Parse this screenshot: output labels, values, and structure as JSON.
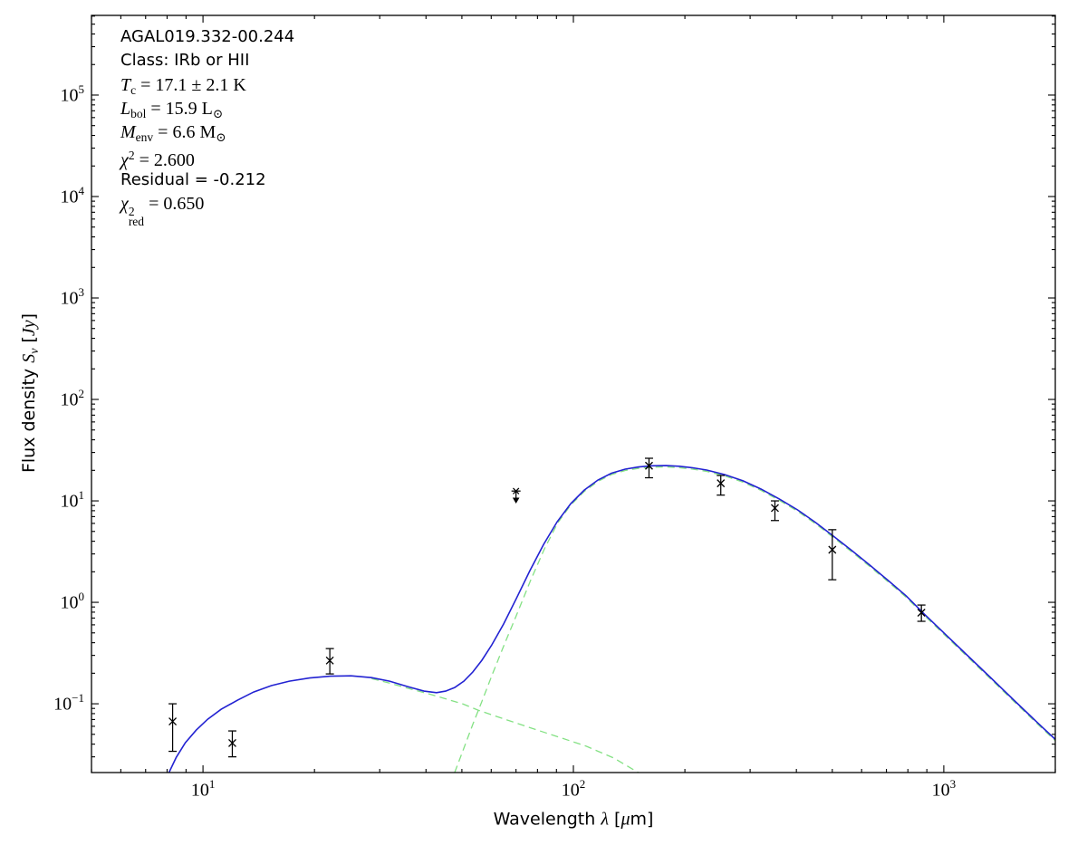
{
  "figure": {
    "background": "#ffffff",
    "annotation": {
      "lines": [
        {
          "name": "source-name",
          "parts": [
            {
              "t": "AGAL019.332-00.244",
              "f": "sans"
            }
          ]
        },
        {
          "name": "class",
          "parts": [
            {
              "t": "Class: IRb or HII",
              "f": "sans"
            }
          ]
        },
        {
          "name": "temperature",
          "parts": [
            {
              "t": "T",
              "f": "i"
            },
            {
              "t": "c",
              "f": "sub"
            },
            {
              "t": " = 17.1 ± 2.1 K",
              "f": "r"
            }
          ]
        },
        {
          "name": "luminosity",
          "parts": [
            {
              "t": "L",
              "f": "i"
            },
            {
              "t": "bol",
              "f": "sub"
            },
            {
              "t": " = 15.9 L",
              "f": "r"
            },
            {
              "t": "⊙",
              "f": "sub"
            }
          ]
        },
        {
          "name": "envelope-mass",
          "parts": [
            {
              "t": "M",
              "f": "i"
            },
            {
              "t": "env",
              "f": "sub"
            },
            {
              "t": " = 6.6 M",
              "f": "r"
            },
            {
              "t": "⊙",
              "f": "sub"
            }
          ]
        },
        {
          "name": "chi-squared",
          "parts": [
            {
              "t": "χ",
              "f": "i"
            },
            {
              "t": "2",
              "f": "sup"
            },
            {
              "t": " = 2.600",
              "f": "r"
            }
          ]
        },
        {
          "name": "residual",
          "parts": [
            {
              "t": "Residual = -0.212",
              "f": "sans"
            }
          ]
        },
        {
          "name": "chi-squared-red",
          "parts": [
            {
              "t": "χ",
              "f": "i"
            },
            {
              "t": "2|red",
              "f": "stack"
            },
            {
              "t": " = 0.650",
              "f": "r"
            }
          ]
        }
      ]
    },
    "chart_data": {
      "type": "line",
      "title": "",
      "xlabel_parts": [
        {
          "t": "Wavelength ",
          "f": "sans"
        },
        {
          "t": "λ",
          "f": "mvar"
        },
        {
          "t": " [",
          "f": "sans"
        },
        {
          "t": "μ",
          "f": "mvar"
        },
        {
          "t": "m]",
          "f": "sans"
        }
      ],
      "ylabel_parts": [
        {
          "t": "Flux density ",
          "f": "sans"
        },
        {
          "t": "S",
          "f": "mvar"
        },
        {
          "t": "ν",
          "f": "msub"
        },
        {
          "t": " [",
          "f": "sans"
        },
        {
          "t": "Jy",
          "f": "mvar"
        },
        {
          "t": "]",
          "f": "sans"
        }
      ],
      "x_scale": "log",
      "y_scale": "log",
      "xlim": [
        5,
        2000
      ],
      "ylim": [
        0.021,
        610000
      ],
      "grid": false,
      "legend": "none",
      "tick_base": "10",
      "x_tick_exponents": [
        1,
        2,
        3
      ],
      "y_tick_exponents": [
        5,
        4,
        3,
        2,
        1,
        0,
        -1
      ],
      "colors": {
        "model_total": "#2222d2",
        "components": "#84e184",
        "data": "#000000"
      },
      "points": [
        {
          "wavelength_um": 8.28,
          "flux_jy": 0.067,
          "err_lo_jy": 0.034,
          "err_hi_jy": 0.1,
          "upper_limit": false
        },
        {
          "wavelength_um": 12,
          "flux_jy": 0.041,
          "err_lo_jy": 0.03,
          "err_hi_jy": 0.054,
          "upper_limit": false
        },
        {
          "wavelength_um": 22,
          "flux_jy": 0.267,
          "err_lo_jy": 0.197,
          "err_hi_jy": 0.35,
          "upper_limit": false
        },
        {
          "wavelength_um": 70,
          "flux_jy": 12.5,
          "upper_limit": true,
          "arrow_to_jy": 9.4
        },
        {
          "wavelength_um": 160,
          "flux_jy": 22.2,
          "err_lo_jy": 16.9,
          "err_hi_jy": 26.3,
          "upper_limit": false
        },
        {
          "wavelength_um": 250,
          "flux_jy": 14.9,
          "err_lo_jy": 11.4,
          "err_hi_jy": 17.8,
          "upper_limit": false
        },
        {
          "wavelength_um": 350,
          "flux_jy": 8.5,
          "err_lo_jy": 6.4,
          "err_hi_jy": 10.0,
          "upper_limit": false
        },
        {
          "wavelength_um": 500,
          "flux_jy": 3.3,
          "err_lo_jy": 1.67,
          "err_hi_jy": 5.2,
          "upper_limit": false
        },
        {
          "wavelength_um": 870,
          "flux_jy": 0.79,
          "err_lo_jy": 0.65,
          "err_hi_jy": 0.94,
          "upper_limit": false
        }
      ],
      "series": [
        {
          "name": "total-model",
          "style": "solid",
          "color_key": "model_total",
          "xy": [
            [
              8.09,
              0.0209
            ],
            [
              8.47,
              0.0297
            ],
            [
              8.96,
              0.0413
            ],
            [
              9.59,
              0.0551
            ],
            [
              10.3,
              0.0705
            ],
            [
              11.2,
              0.0884
            ],
            [
              12.4,
              0.1086
            ],
            [
              13.7,
              0.1306
            ],
            [
              15.3,
              0.151
            ],
            [
              17.1,
              0.167
            ],
            [
              19.4,
              0.1797
            ],
            [
              22.1,
              0.1872
            ],
            [
              25.1,
              0.1887
            ],
            [
              28.5,
              0.181
            ],
            [
              31.9,
              0.167
            ],
            [
              35.7,
              0.1476
            ],
            [
              39.5,
              0.1334
            ],
            [
              42.7,
              0.1286
            ],
            [
              45.2,
              0.1334
            ],
            [
              47.8,
              0.1445
            ],
            [
              50.6,
              0.167
            ],
            [
              53.5,
              0.2056
            ],
            [
              56.6,
              0.268
            ],
            [
              60.2,
              0.38
            ],
            [
              64.8,
              0.611
            ],
            [
              70.1,
              1.086
            ],
            [
              76.3,
              2.05
            ],
            [
              83.1,
              3.72
            ],
            [
              90.4,
              6.22
            ],
            [
              98.4,
              9.4
            ],
            [
              107,
              12.77
            ],
            [
              116.5,
              16.05
            ],
            [
              126.7,
              18.74
            ],
            [
              138,
              20.55
            ],
            [
              150,
              21.6
            ],
            [
              163,
              22.16
            ],
            [
              178,
              22.3
            ],
            [
              193,
              21.93
            ],
            [
              210,
              21.2
            ],
            [
              229,
              20.14
            ],
            [
              256,
              18.18
            ],
            [
              287,
              15.76
            ],
            [
              321,
              13.08
            ],
            [
              360,
              10.42
            ],
            [
              403,
              8.15
            ],
            [
              451,
              6.11
            ],
            [
              504,
              4.48
            ],
            [
              565,
              3.23
            ],
            [
              632,
              2.32
            ],
            [
              708,
              1.638
            ],
            [
              792,
              1.155
            ],
            [
              886,
              0.766
            ],
            [
              1020,
              0.467
            ],
            [
              1175,
              0.285
            ],
            [
              1353,
              0.174
            ],
            [
              1557,
              0.106
            ],
            [
              1793,
              0.0648
            ],
            [
              2008,
              0.044
            ]
          ]
        },
        {
          "name": "cold-component",
          "style": "dashed",
          "color_key": "components",
          "xy": [
            [
              47.8,
              0.021
            ],
            [
              50.6,
              0.0364
            ],
            [
              53.5,
              0.0626
            ],
            [
              56.8,
              0.1086
            ],
            [
              60.5,
              0.1976
            ],
            [
              65,
              0.38
            ],
            [
              70.4,
              0.766
            ],
            [
              76.6,
              1.638
            ],
            [
              83.5,
              3.36
            ],
            [
              90.8,
              6.1
            ],
            [
              98.4,
              9.12
            ],
            [
              107,
              12.39
            ],
            [
              116.5,
              15.57
            ],
            [
              126.7,
              18.18
            ],
            [
              138,
              19.93
            ],
            [
              150,
              20.95
            ],
            [
              163,
              21.5
            ],
            [
              178,
              21.63
            ],
            [
              193,
              21.27
            ],
            [
              210,
              20.56
            ],
            [
              229,
              19.54
            ],
            [
              256,
              17.63
            ],
            [
              287,
              15.29
            ],
            [
              321,
              12.69
            ],
            [
              360,
              10.11
            ],
            [
              403,
              7.91
            ],
            [
              451,
              5.93
            ],
            [
              504,
              4.35
            ],
            [
              565,
              3.13
            ],
            [
              632,
              2.25
            ],
            [
              708,
              1.589
            ],
            [
              792,
              1.12
            ],
            [
              886,
              0.743
            ],
            [
              1020,
              0.453
            ],
            [
              1175,
              0.276
            ],
            [
              1353,
              0.169
            ],
            [
              1557,
              0.103
            ],
            [
              1793,
              0.0629
            ],
            [
              2008,
              0.0427
            ]
          ]
        },
        {
          "name": "warm-component",
          "style": "dashed",
          "color_key": "components",
          "xy": [
            [
              28.5,
              0.1773
            ],
            [
              31.9,
              0.1598
            ],
            [
              35.7,
              0.1425
            ],
            [
              39.9,
              0.1277
            ],
            [
              44.9,
              0.1128
            ],
            [
              50.3,
              0.0996
            ],
            [
              55.4,
              0.0863
            ],
            [
              65.3,
              0.0704
            ],
            [
              77.1,
              0.0575
            ],
            [
              91.4,
              0.0469
            ],
            [
              108.3,
              0.0382
            ],
            [
              128.5,
              0.0292
            ],
            [
              150,
              0.0209
            ]
          ]
        }
      ]
    }
  }
}
